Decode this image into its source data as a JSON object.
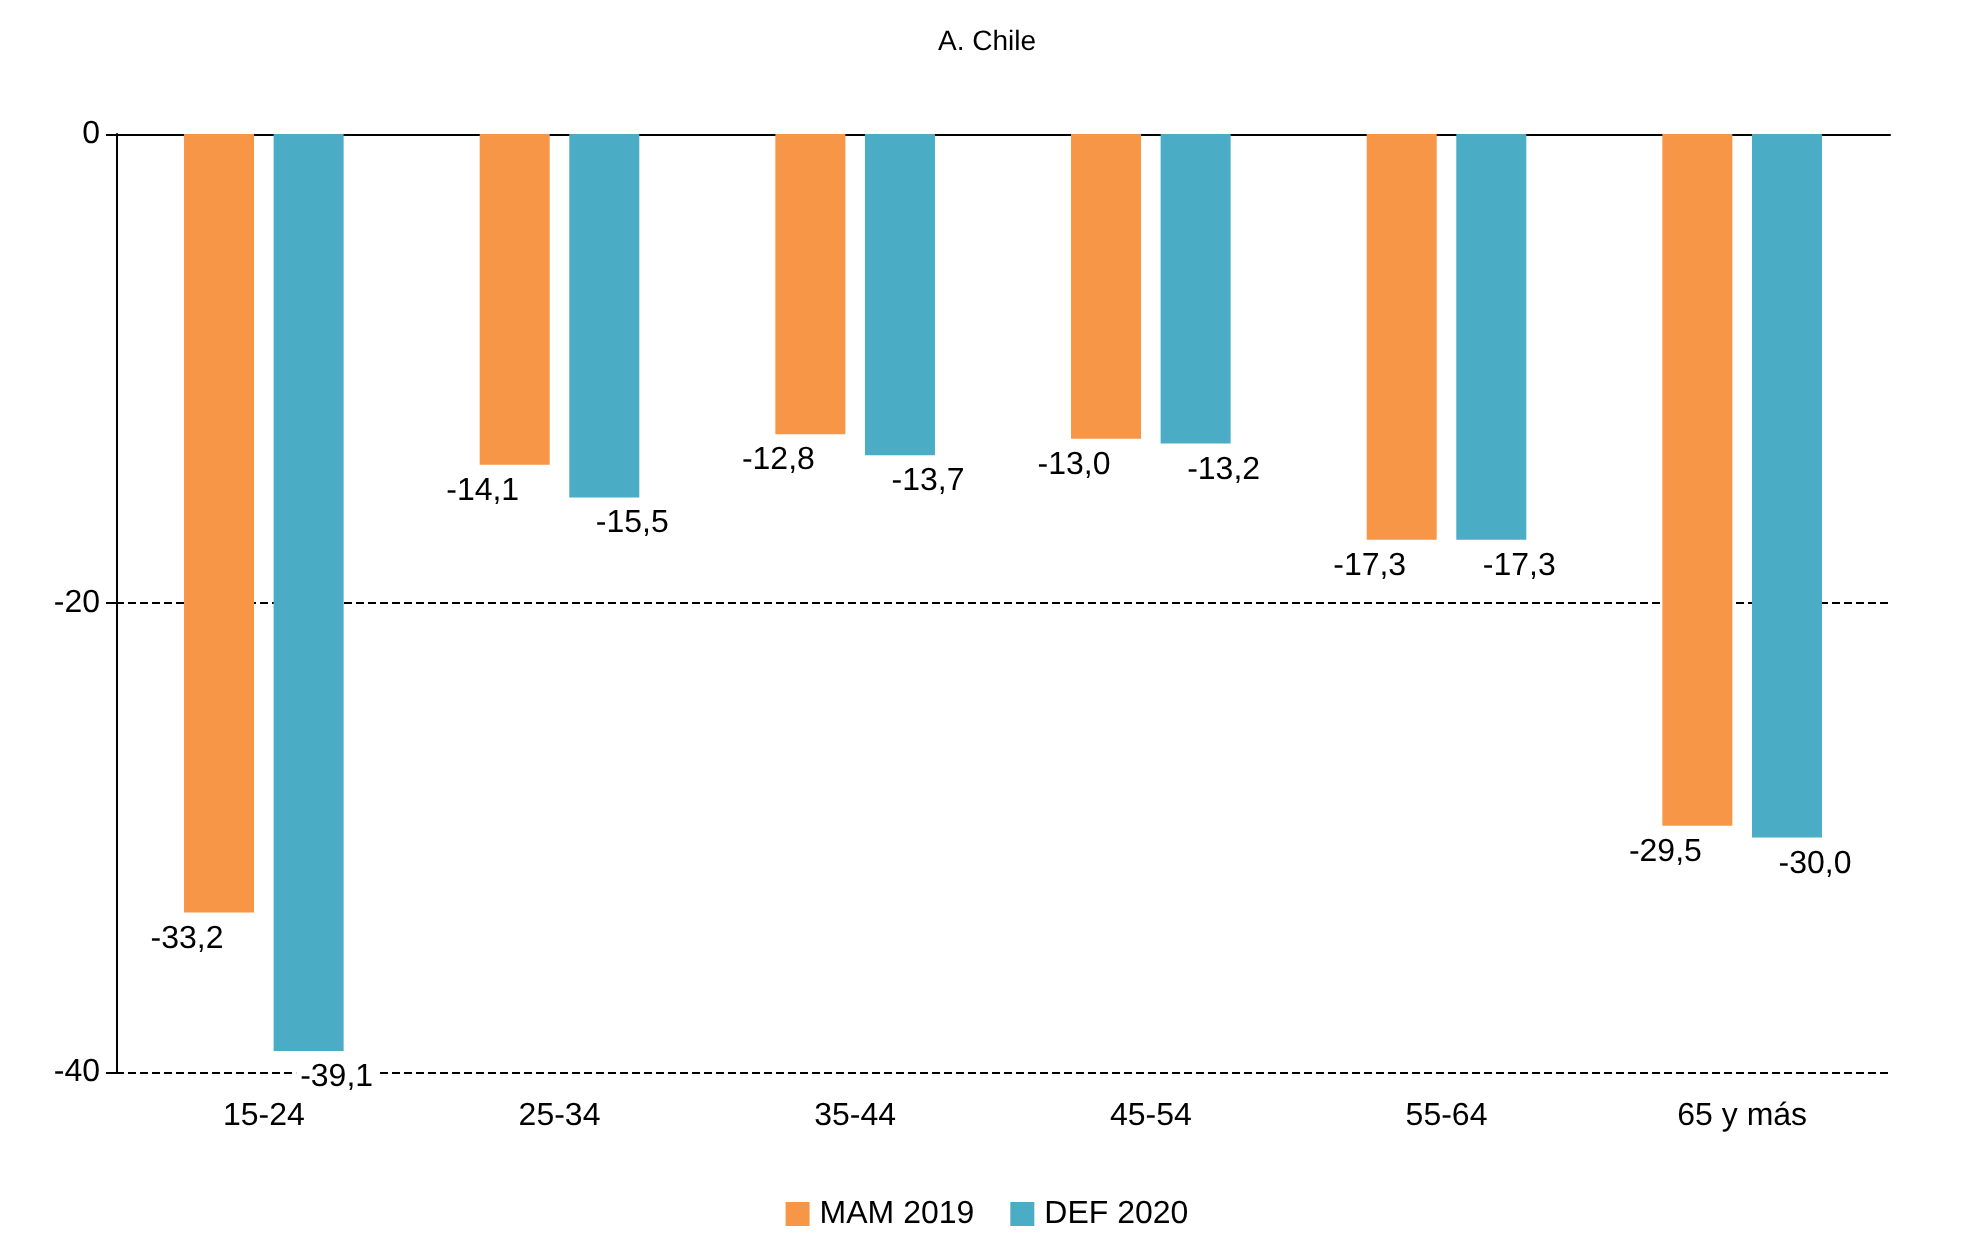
{
  "chart_data": {
    "type": "bar",
    "title": "A. Chile",
    "categories": [
      "15-24",
      "25-34",
      "35-44",
      "45-54",
      "55-64",
      "65 y más"
    ],
    "series": [
      {
        "name": "MAM 2019",
        "color": "#f79646",
        "values": [
          -33.2,
          -14.1,
          -12.8,
          -13.0,
          -17.3,
          -29.5
        ],
        "value_labels": [
          "-33,2",
          "-14,1",
          "-12,8",
          "-13,0",
          "-17,3",
          "-29,5"
        ]
      },
      {
        "name": "DEF 2020",
        "color": "#4bacc6",
        "values": [
          -39.1,
          -15.5,
          -13.7,
          -13.2,
          -17.3,
          -30.0
        ],
        "value_labels": [
          "-39,1",
          "-15,5",
          "-13,7",
          "-13,2",
          "-17,3",
          "-30,0"
        ]
      }
    ],
    "ylim": [
      -40,
      0
    ],
    "yticks": [
      -40,
      -20,
      0
    ],
    "grid": "y",
    "legend": "bottom"
  }
}
